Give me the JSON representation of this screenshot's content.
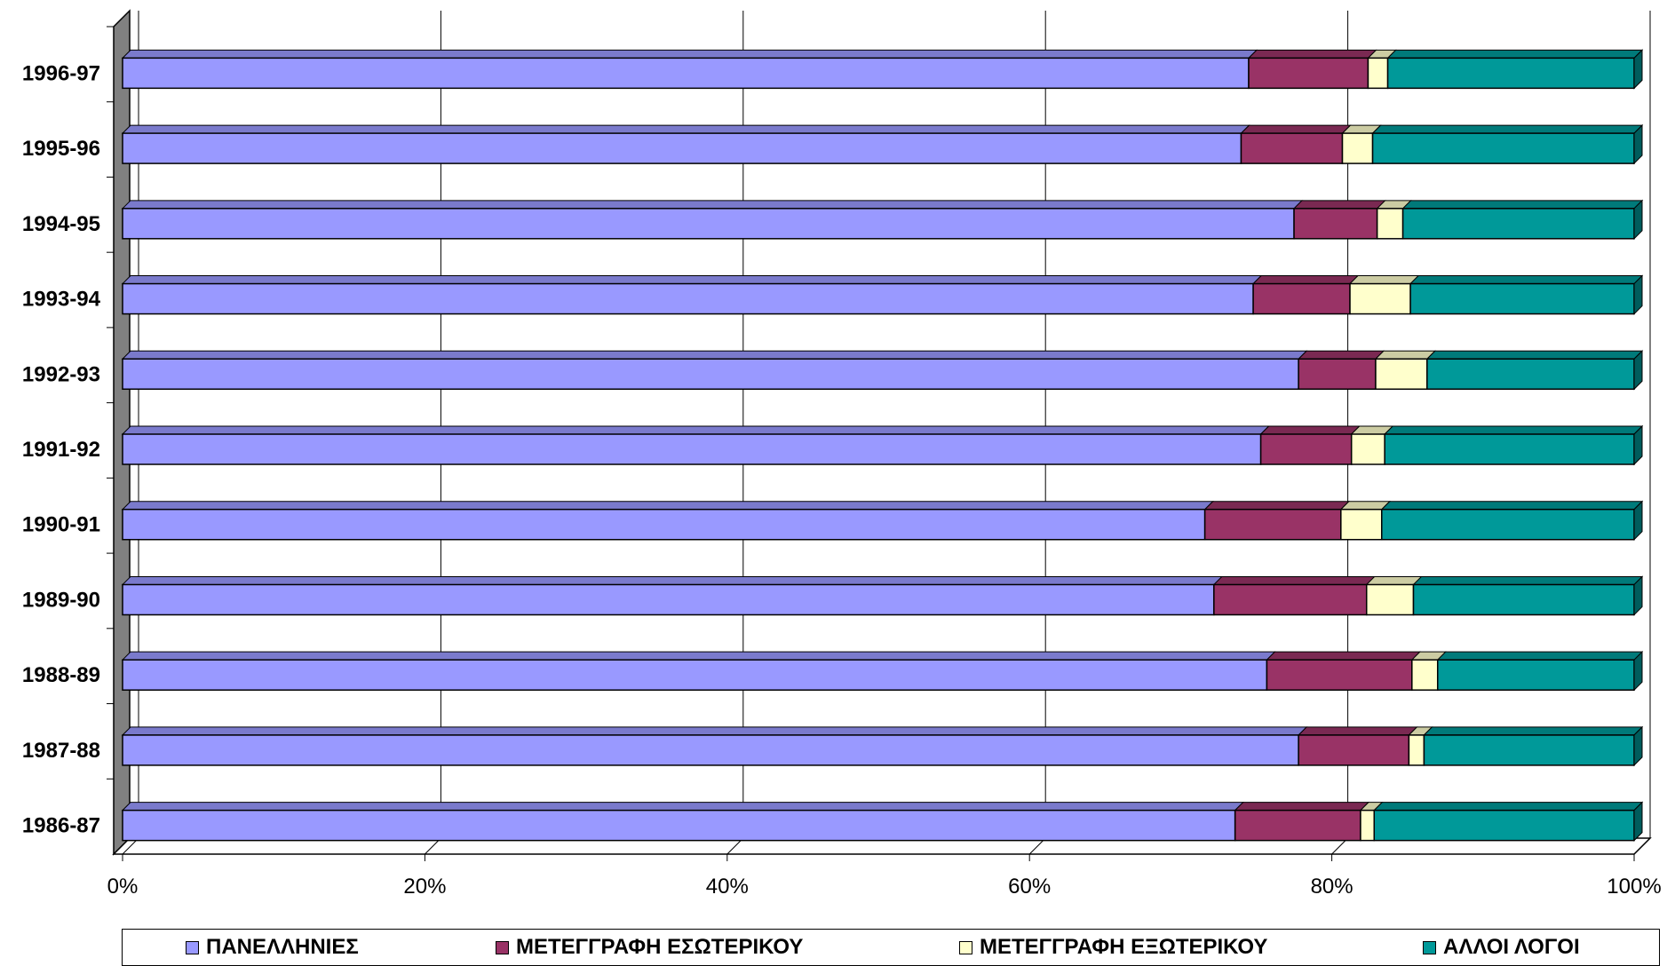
{
  "chart_data": {
    "type": "bar",
    "orientation": "horizontal",
    "stacked": "100%",
    "style": "3d",
    "categories": [
      "1996-97",
      "1995-96",
      "1994-95",
      "1993-94",
      "1992-93",
      "1991-92",
      "1990-91",
      "1989-90",
      "1988-89",
      "1987-88",
      "1986-87"
    ],
    "series": [
      {
        "name": "ΠΑΝΕΛΛΗΝΙΕΣ",
        "color": "#9999FF",
        "values": [
          74.5,
          74.0,
          77.5,
          74.8,
          77.8,
          75.3,
          71.6,
          72.2,
          75.7,
          77.8,
          73.6
        ]
      },
      {
        "name": "ΜΕΤΕΓΓΡΑΦΗ ΕΣΩΤΕΡΙΚΟΥ",
        "color": "#993366",
        "values": [
          7.9,
          6.7,
          5.5,
          6.4,
          5.1,
          6.0,
          9.0,
          10.1,
          9.6,
          7.3,
          8.3
        ]
      },
      {
        "name": "ΜΕΤΕΓΓΡΑΦΗ ΕΞΩΤΕΡΙΚΟΥ",
        "color": "#FFFFCC",
        "values": [
          1.3,
          2.0,
          1.7,
          4.0,
          3.4,
          2.2,
          2.7,
          3.1,
          1.7,
          1.0,
          0.9
        ]
      },
      {
        "name": "ΑΛΛΟΙ ΛΟΓΟΙ",
        "color": "#009999",
        "values": [
          16.3,
          17.3,
          15.3,
          14.8,
          13.7,
          16.5,
          16.7,
          14.6,
          13.0,
          13.9,
          17.2
        ]
      }
    ],
    "xlim": [
      0,
      100
    ],
    "xticks": [
      "0%",
      "20%",
      "40%",
      "60%",
      "80%",
      "100%"
    ],
    "title": "",
    "xlabel": "",
    "ylabel": "",
    "grid": "vertical",
    "legend_position": "bottom"
  }
}
